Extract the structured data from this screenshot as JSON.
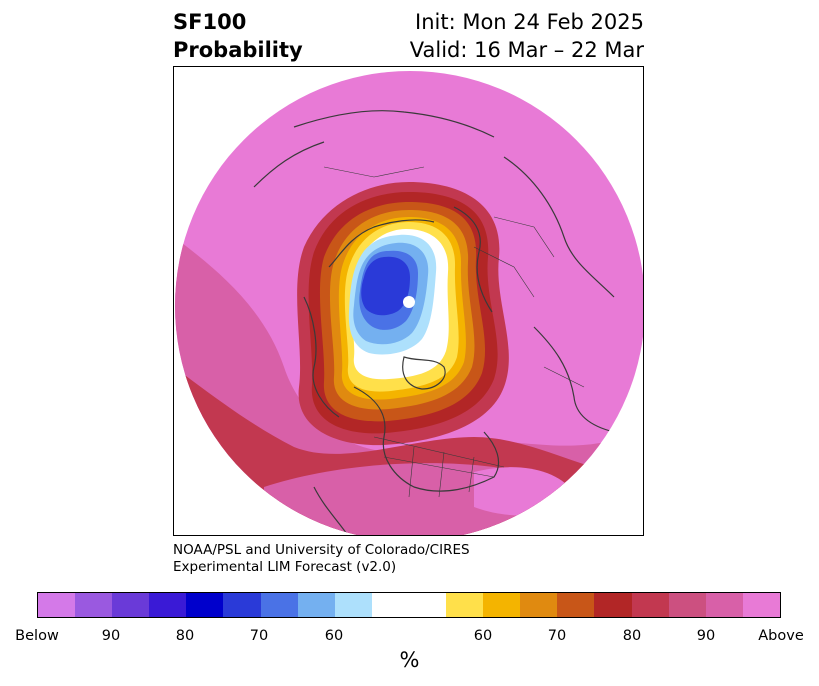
{
  "header": {
    "title_line1": "SF100",
    "title_line2": "Probability",
    "init_text": "Init: Mon 24 Feb 2025",
    "valid_text": "Valid: 16 Mar – 22 Mar"
  },
  "credit": {
    "line1": "NOAA/PSL and University of Colorado/CIRES",
    "line2": "Experimental LIM Forecast (v2.0)"
  },
  "colorbar": {
    "colors": [
      "#d479e8",
      "#9a59e0",
      "#6a3ad8",
      "#3a1ad6",
      "#0000cc",
      "#2a3ad8",
      "#4a72e6",
      "#74b0f0",
      "#ade0fc",
      "#ffffff",
      "#ffffff",
      "#ffe04a",
      "#f4b400",
      "#e08a10",
      "#c85618",
      "#b22626",
      "#c23850",
      "#cc5080",
      "#d860a8",
      "#e87ad6"
    ],
    "tick_labels": [
      "Below",
      "90",
      "80",
      "70",
      "60",
      "60",
      "70",
      "80",
      "90",
      "Above"
    ],
    "unit_label": "%"
  },
  "map": {
    "background_color": "#e87ad6",
    "contour_colors": {
      "above_90": "#e87ad6",
      "above_80": "#d860a8",
      "above_70": "#c23850",
      "above_60": "#b22626",
      "above_50": "#e08a10",
      "above_40": "#f4b400",
      "near_normal": "#ffffff",
      "below_40": "#ade0fc",
      "below_50": "#74b0f0",
      "below_60": "#4a72e6",
      "below_70": "#2a3ad8"
    }
  }
}
